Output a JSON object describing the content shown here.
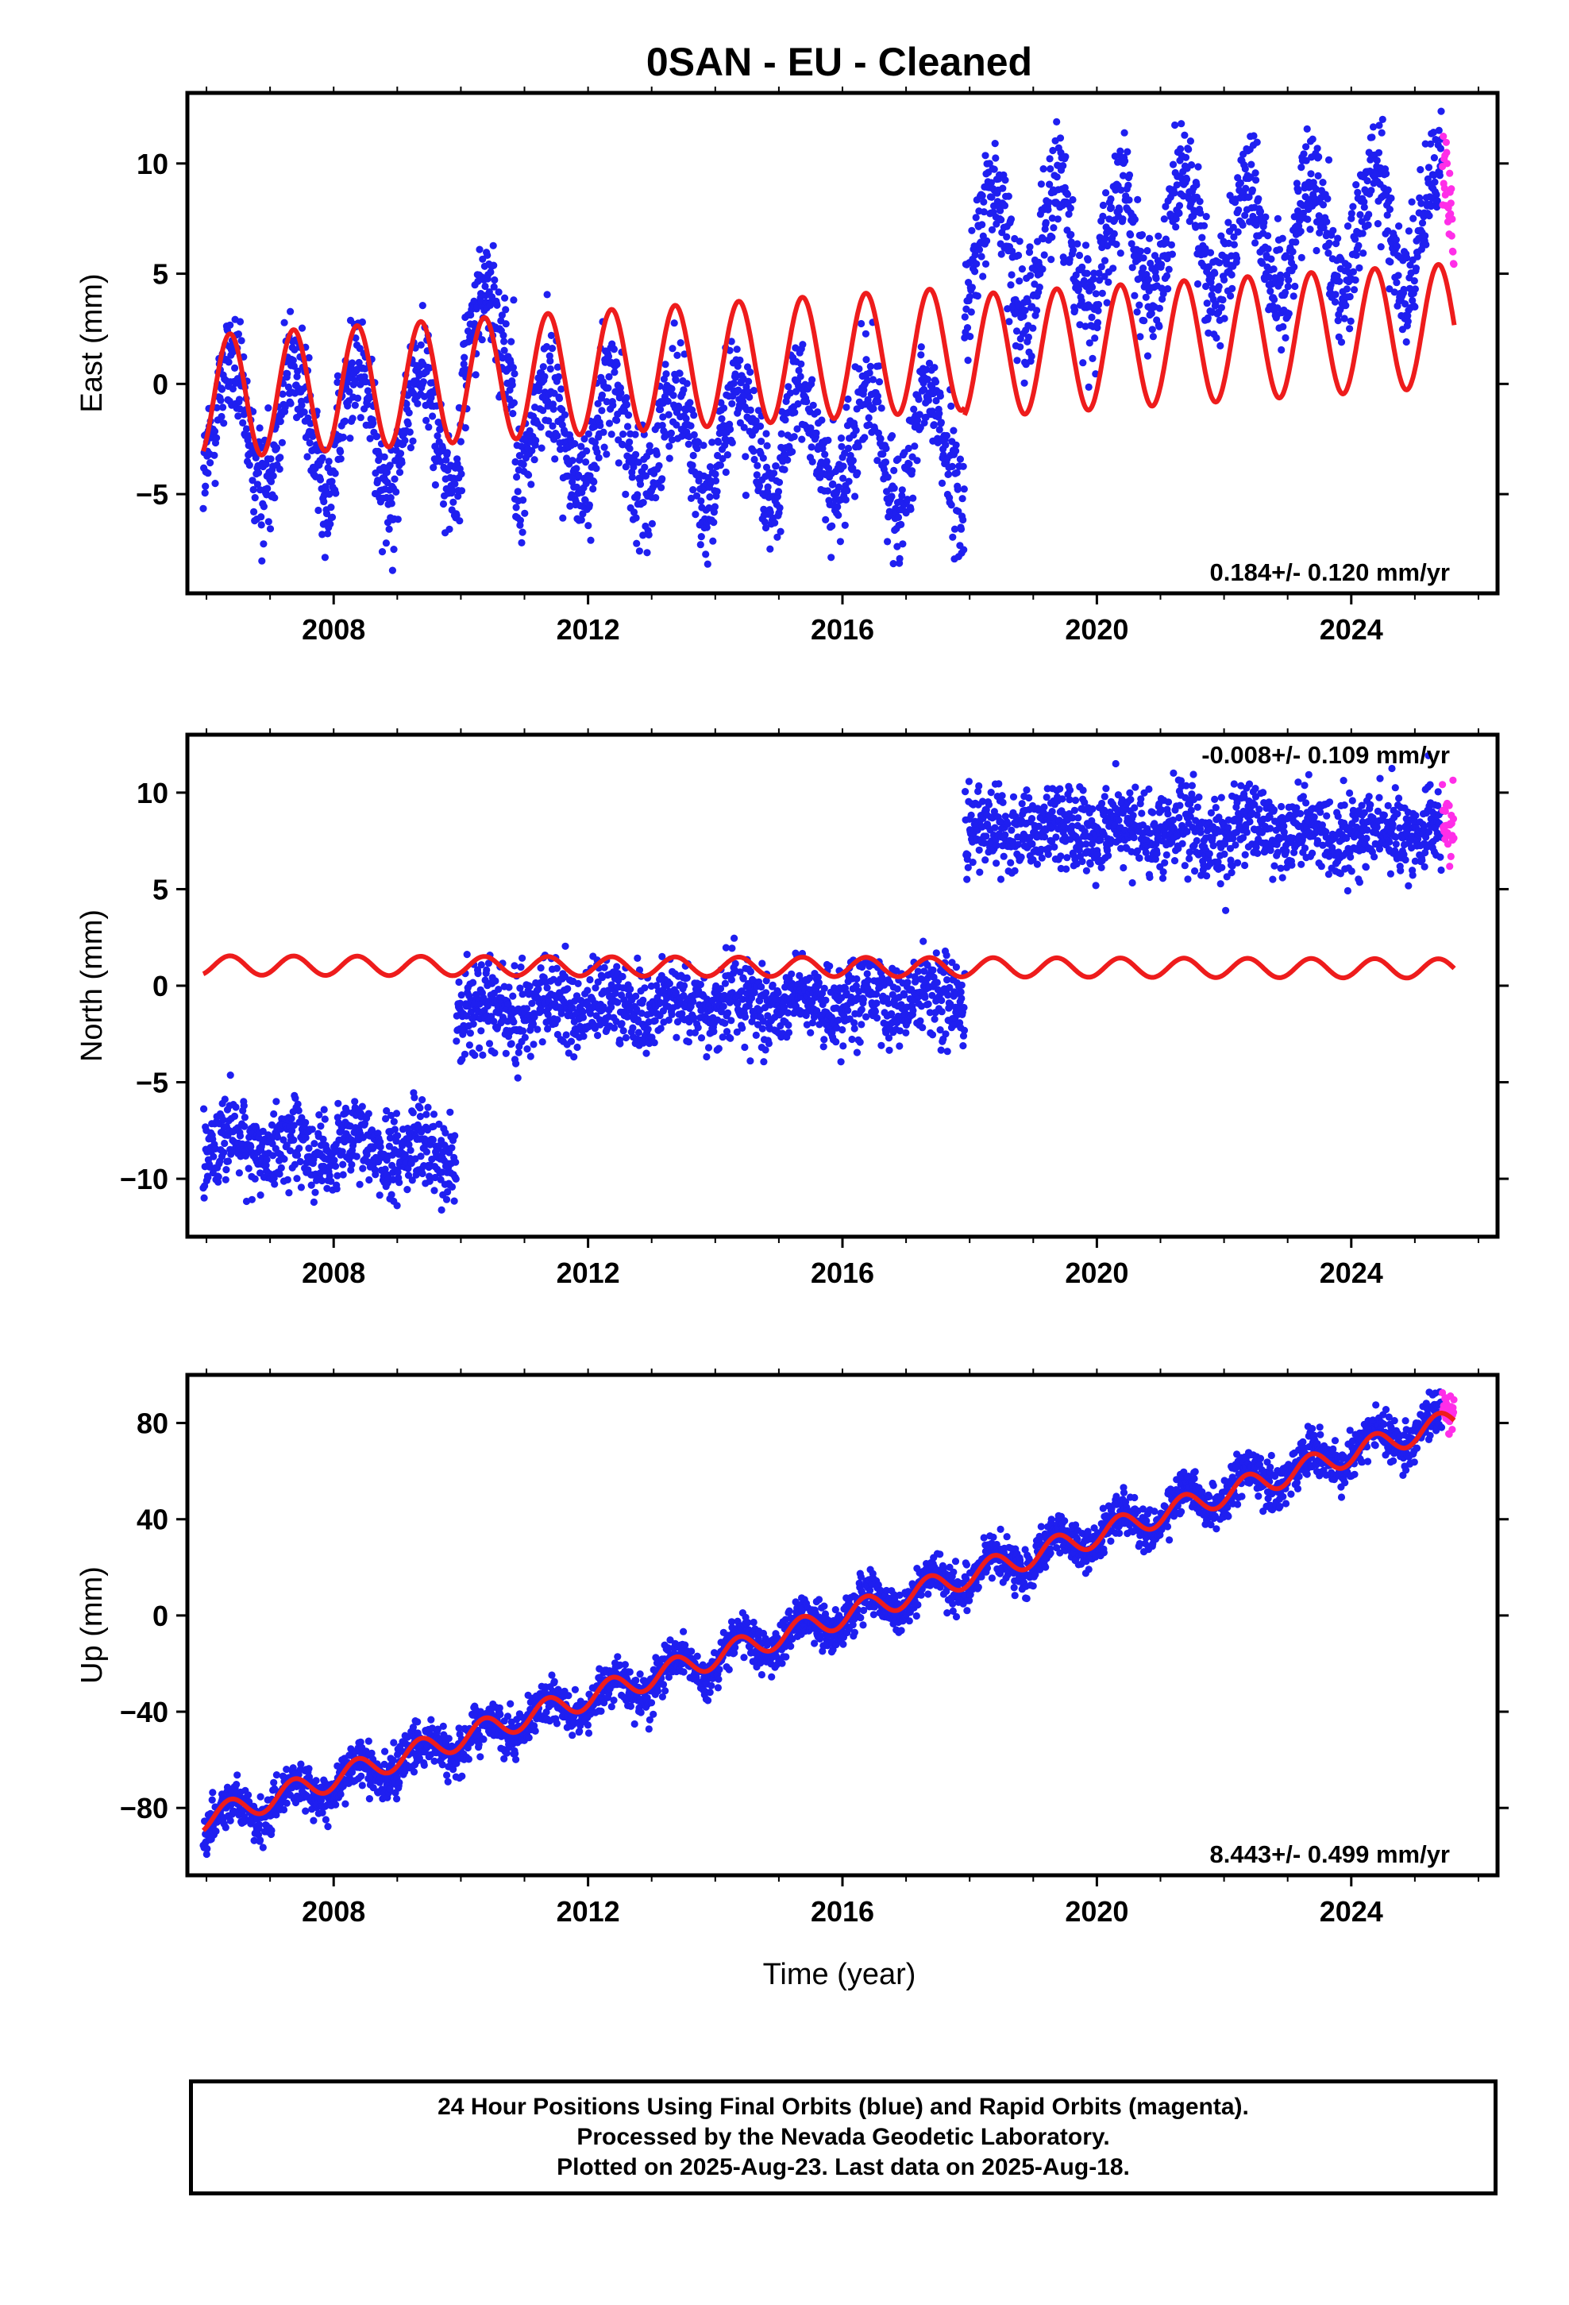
{
  "title": "0SAN  - EU - Cleaned",
  "xlabel": "Time (year)",
  "footer": [
    "24 Hour Positions Using Final Orbits (blue) and Rapid Orbits (magenta).",
    "Processed by the Nevada Geodetic Laboratory.",
    "Plotted on 2025-Aug-23. Last data on 2025-Aug-18."
  ],
  "colors": {
    "final": "#1f1ff0",
    "rapid": "#ff2ee8",
    "model": "#ee1c1c",
    "frame": "#000000"
  },
  "chart_data": [
    {
      "type": "scatter",
      "name": "east",
      "ylabel": "East (mm)",
      "rate_label": "0.184+/- 0.120 mm/yr",
      "xlim": [
        2005.7,
        2026.3
      ],
      "ylim": [
        -9.5,
        13.2
      ],
      "xticks": [
        "2008",
        "2012",
        "2016",
        "2020",
        "2024"
      ],
      "yticks": [
        "10",
        "5",
        "0",
        "−5"
      ],
      "ytick_values": [
        10,
        5,
        0,
        -5
      ],
      "rapid_x": [
        2025.43,
        2025.62
      ],
      "model": {
        "amplitude": 2.8,
        "segments": [
          {
            "x": [
              2005.95,
              2017.92
            ],
            "offset0": -0.6,
            "trend": 0.184
          },
          {
            "x": [
              2017.92,
              2025.62
            ],
            "offset0": 1.25,
            "trend": 0.184
          }
        ]
      },
      "observed": {
        "noise": 1.3,
        "segments": [
          {
            "x": [
              2005.95,
              2010.02
            ],
            "mean_start": -1.8,
            "mean_end": -2.0,
            "amplitude": 2.8
          },
          {
            "x": [
              2010.02,
              2010.85
            ],
            "mean_start": 1.5,
            "mean_end": 2.5,
            "amplitude": 2.2
          },
          {
            "x": [
              2010.85,
              2017.92
            ],
            "mean_start": -2.3,
            "mean_end": -3.0,
            "amplitude": 2.6
          },
          {
            "x": [
              2017.92,
              2025.62
            ],
            "mean_start": 6.0,
            "mean_end": 7.2,
            "amplitude": 2.7
          }
        ]
      }
    },
    {
      "type": "scatter",
      "name": "north",
      "ylabel": "North (mm)",
      "rate_label": "-0.008+/- 0.109 mm/yr",
      "xlim": [
        2005.7,
        2026.3
      ],
      "ylim": [
        -13.0,
        13.0
      ],
      "xticks": [
        "2008",
        "2012",
        "2016",
        "2020",
        "2024"
      ],
      "yticks": [
        "10",
        "5",
        "0",
        "−5",
        "−10"
      ],
      "ytick_values": [
        10,
        5,
        0,
        -5,
        -10
      ],
      "rapid_x": [
        2025.43,
        2025.62
      ],
      "model": {
        "amplitude": 0.5,
        "segments": [
          {
            "x": [
              2005.95,
              2025.62
            ],
            "offset0": 1.05,
            "trend": -0.008
          }
        ]
      },
      "observed": {
        "noise": 1.1,
        "segments": [
          {
            "x": [
              2005.95,
              2009.93
            ],
            "mean_start": -8.2,
            "mean_end": -8.6,
            "amplitude": 0.5
          },
          {
            "x": [
              2009.93,
              2017.93
            ],
            "mean_start": -1.3,
            "mean_end": -0.5,
            "amplitude": 0.5
          },
          {
            "x": [
              2017.93,
              2025.62
            ],
            "mean_start": 8.0,
            "mean_end": 8.0,
            "amplitude": 0.5
          }
        ]
      }
    },
    {
      "type": "scatter",
      "name": "up",
      "ylabel": "Up (mm)",
      "rate_label": "8.443+/- 0.499 mm/yr",
      "xlim": [
        2005.7,
        2026.3
      ],
      "ylim": [
        -108,
        100
      ],
      "xticks": [
        "2008",
        "2012",
        "2016",
        "2020",
        "2024"
      ],
      "yticks": [
        "80",
        "40",
        "0",
        "−40",
        "−80"
      ],
      "ytick_values": [
        80,
        40,
        0,
        -40,
        -80
      ],
      "rapid_x": [
        2025.43,
        2025.62
      ],
      "model": {
        "amplitude": 5.0,
        "segments": [
          {
            "x": [
              2005.95,
              2025.62
            ],
            "offset0": -85.0,
            "trend": 8.443
          }
        ]
      },
      "observed": {
        "noise": 4.5,
        "segments": [
          {
            "x": [
              2005.95,
              2025.62
            ],
            "mean_start": -87.0,
            "mean_end": 82.0,
            "amplitude": 6.0
          }
        ]
      }
    }
  ]
}
